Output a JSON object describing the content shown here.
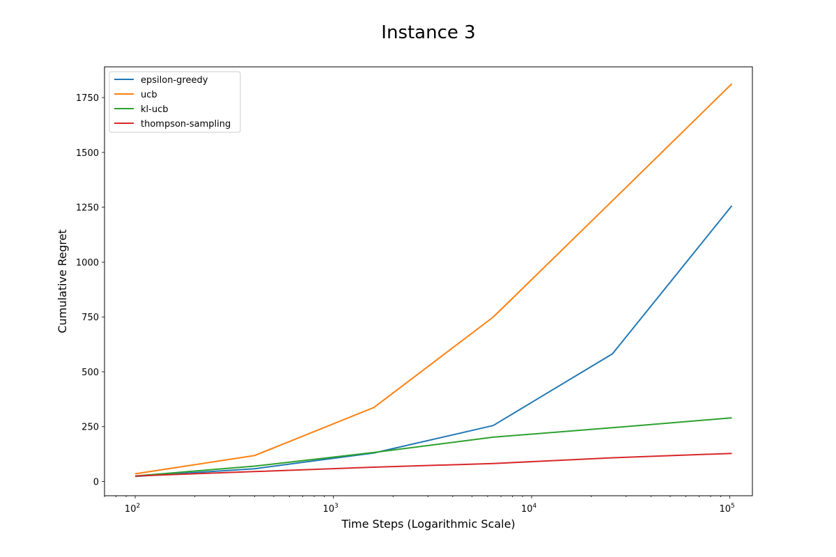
{
  "chart_data": {
    "type": "line",
    "title": "Instance 3",
    "xlabel": "Time Steps (Logarithmic Scale)",
    "ylabel": "Cumulative Regret",
    "xscale": "log",
    "xlim": [
      70,
      130000
    ],
    "ylim": [
      -65,
      1890
    ],
    "x_ticks": [
      {
        "value": 100,
        "base": "10",
        "exp": "2"
      },
      {
        "value": 1000,
        "base": "10",
        "exp": "3"
      },
      {
        "value": 10000,
        "base": "10",
        "exp": "4"
      },
      {
        "value": 100000,
        "base": "10",
        "exp": "5"
      }
    ],
    "y_ticks": [
      0,
      250,
      500,
      750,
      1000,
      1250,
      1500,
      1750
    ],
    "y_tick_labels": [
      "0",
      "250",
      "500",
      "750",
      "1000",
      "1250",
      "1500",
      "1750"
    ],
    "grid": false,
    "legend_position": "top-left",
    "x": [
      100,
      400,
      1600,
      6400,
      25600,
      102400
    ],
    "series": [
      {
        "name": "epsilon-greedy",
        "color": "#1f77b4",
        "values": [
          23,
          58,
          130,
          255,
          582,
          1257
        ]
      },
      {
        "name": "ucb",
        "color": "#ff7f0e",
        "values": [
          35,
          118,
          337,
          749,
          1280,
          1813
        ]
      },
      {
        "name": "kl-ucb",
        "color": "#2ca02c",
        "values": [
          25,
          70,
          132,
          202,
          245,
          290
        ]
      },
      {
        "name": "thompson-sampling",
        "color": "#d62728",
        "values": [
          25,
          45,
          65,
          82,
          108,
          128
        ]
      }
    ]
  }
}
